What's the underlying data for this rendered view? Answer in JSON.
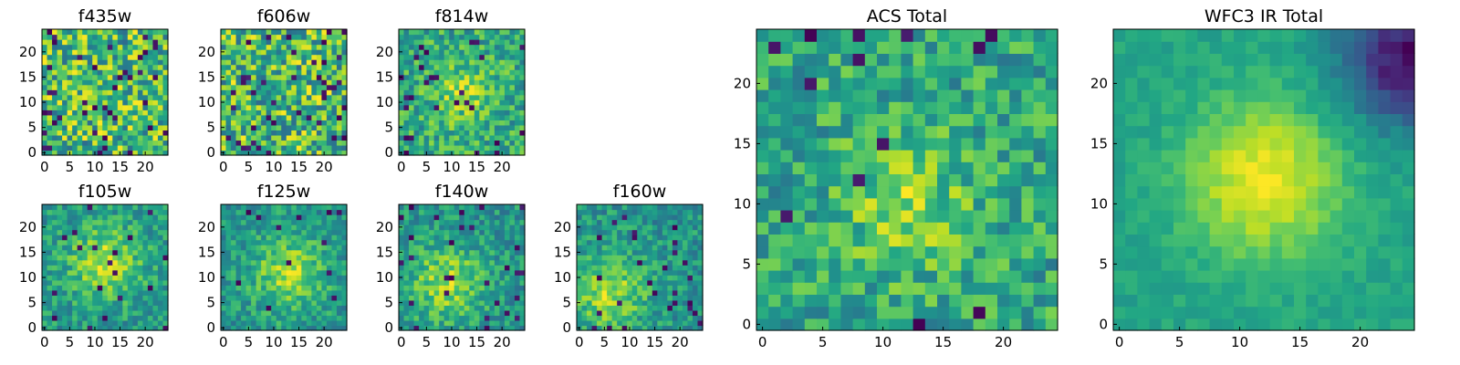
{
  "figure": {
    "description_free": true
  },
  "chart_data": [
    {
      "id": "f435w",
      "type": "heatmap",
      "title": "f435w",
      "size": 25,
      "colormap": "viridis",
      "xticks": [
        0,
        5,
        10,
        15,
        20
      ],
      "yticks": [
        0,
        5,
        10,
        15,
        20
      ],
      "xlim": [
        -0.5,
        24.5
      ],
      "ylim": [
        -0.5,
        24.5
      ],
      "pattern": "noise",
      "noise_seed": 11,
      "dark_fraction": 0.06
    },
    {
      "id": "f606w",
      "type": "heatmap",
      "title": "f606w",
      "size": 25,
      "colormap": "viridis",
      "xticks": [
        0,
        5,
        10,
        15,
        20
      ],
      "yticks": [
        0,
        5,
        10,
        15,
        20
      ],
      "xlim": [
        -0.5,
        24.5
      ],
      "ylim": [
        -0.5,
        24.5
      ],
      "pattern": "noise",
      "noise_seed": 23,
      "dark_fraction": 0.06
    },
    {
      "id": "f814w",
      "type": "heatmap",
      "title": "f814w",
      "size": 25,
      "colormap": "viridis",
      "xticks": [
        0,
        5,
        10,
        15,
        20
      ],
      "yticks": [
        0,
        5,
        10,
        15,
        20
      ],
      "xlim": [
        -0.5,
        24.5
      ],
      "ylim": [
        -0.5,
        24.5
      ],
      "pattern": "faint-source",
      "source_center": [
        12,
        12
      ],
      "noise_seed": 37,
      "dark_fraction": 0.05
    },
    {
      "id": "f105w",
      "type": "heatmap",
      "title": "f105w",
      "size": 25,
      "colormap": "viridis",
      "xticks": [
        0,
        5,
        10,
        15,
        20
      ],
      "yticks": [
        0,
        5,
        10,
        15,
        20
      ],
      "xlim": [
        -0.5,
        24.5
      ],
      "ylim": [
        -0.5,
        24.5
      ],
      "pattern": "source",
      "source_center": [
        12,
        13
      ],
      "noise_seed": 41,
      "dark_fraction": 0.03
    },
    {
      "id": "f125w",
      "type": "heatmap",
      "title": "f125w",
      "size": 25,
      "colormap": "viridis",
      "xticks": [
        0,
        5,
        10,
        15,
        20
      ],
      "yticks": [
        0,
        5,
        10,
        15,
        20
      ],
      "xlim": [
        -0.5,
        24.5
      ],
      "ylim": [
        -0.5,
        24.5
      ],
      "pattern": "source",
      "source_center": [
        13,
        11
      ],
      "noise_seed": 53,
      "dark_fraction": 0.02
    },
    {
      "id": "f140w",
      "type": "heatmap",
      "title": "f140w",
      "size": 25,
      "colormap": "viridis",
      "xticks": [
        0,
        5,
        10,
        15,
        20
      ],
      "yticks": [
        0,
        5,
        10,
        15,
        20
      ],
      "xlim": [
        -0.5,
        24.5
      ],
      "ylim": [
        -0.5,
        24.5
      ],
      "pattern": "source",
      "source_center": [
        9,
        9
      ],
      "noise_seed": 67,
      "dark_fraction": 0.04
    },
    {
      "id": "f160w",
      "type": "heatmap",
      "title": "f160w",
      "size": 25,
      "colormap": "viridis",
      "xticks": [
        0,
        5,
        10,
        15,
        20
      ],
      "yticks": [
        0,
        5,
        10,
        15,
        20
      ],
      "xlim": [
        -0.5,
        24.5
      ],
      "ylim": [
        -0.5,
        24.5
      ],
      "pattern": "source",
      "source_center": [
        6,
        7
      ],
      "noise_seed": 79,
      "dark_fraction": 0.05
    },
    {
      "id": "acs-total",
      "type": "heatmap",
      "title": "ACS Total",
      "size": 25,
      "colormap": "viridis",
      "xticks": [
        0,
        5,
        10,
        15,
        20
      ],
      "yticks": [
        0,
        5,
        10,
        15,
        20
      ],
      "xlim": [
        -0.5,
        24.5
      ],
      "ylim": [
        -0.5,
        24.5
      ],
      "pattern": "faint-source",
      "source_center": [
        12,
        10
      ],
      "noise_seed": 97,
      "dark_fraction": 0.03
    },
    {
      "id": "wfc3-ir-total",
      "type": "heatmap",
      "title": "WFC3 IR Total",
      "size": 25,
      "colormap": "viridis",
      "xticks": [
        0,
        5,
        10,
        15,
        20
      ],
      "yticks": [
        0,
        5,
        10,
        15,
        20
      ],
      "xlim": [
        -0.5,
        24.5
      ],
      "ylim": [
        -0.5,
        24.5
      ],
      "pattern": "bright-source",
      "source_center": [
        12,
        12
      ],
      "noise_seed": 113,
      "dark_fraction": 0.0
    }
  ]
}
